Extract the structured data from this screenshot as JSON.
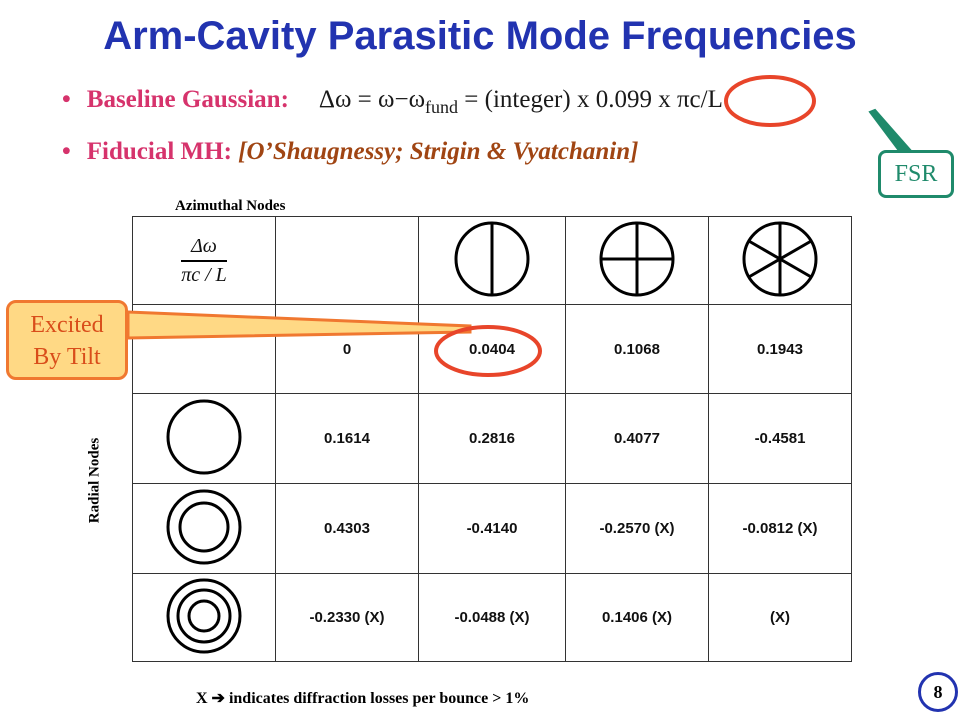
{
  "title": "Arm-Cavity Parasitic Mode Frequencies",
  "bullets": {
    "b1_label": "Baseline Gaussian:",
    "b1_eq_main": "Δω = ω−ω",
    "b1_eq_sub": "fund",
    "b1_eq_tail": " = (integer) x 0.099 x πc/L",
    "b2_label": "Fiducial MH:",
    "b2_ref": "[O’Shaugnessy; Strigin & Vyatchanin]"
  },
  "fsr_label": "FSR",
  "callout": {
    "line1": "Excited",
    "line2": "By Tilt"
  },
  "axis_labels": {
    "azimuthal": "Azimuthal Nodes",
    "radial": "Radial Nodes"
  },
  "header_fraction": {
    "numerator": "Δω",
    "denominator": "πc / L"
  },
  "table": {
    "rows": [
      [
        "0",
        "0.0404",
        "0.1068",
        "0.1943"
      ],
      [
        "0.1614",
        "0.2816",
        "0.4077",
        "-0.4581"
      ],
      [
        "0.4303",
        "-0.4140",
        "-0.2570 (X)",
        "-0.0812 (X)"
      ],
      [
        "-0.2330 (X)",
        "-0.0488 (X)",
        "0.1406 (X)",
        "(X)"
      ]
    ]
  },
  "footnote": "X ➔ indicates diffraction losses per bounce > 1%",
  "page_number": "8",
  "colors": {
    "title": "#2233b0",
    "bullet": "#d6336c",
    "reference": "#a04513",
    "fsr": "#1f8a6b",
    "callout_border": "#f07830",
    "callout_fill": "#ffd985",
    "highlight": "#e8452a"
  }
}
